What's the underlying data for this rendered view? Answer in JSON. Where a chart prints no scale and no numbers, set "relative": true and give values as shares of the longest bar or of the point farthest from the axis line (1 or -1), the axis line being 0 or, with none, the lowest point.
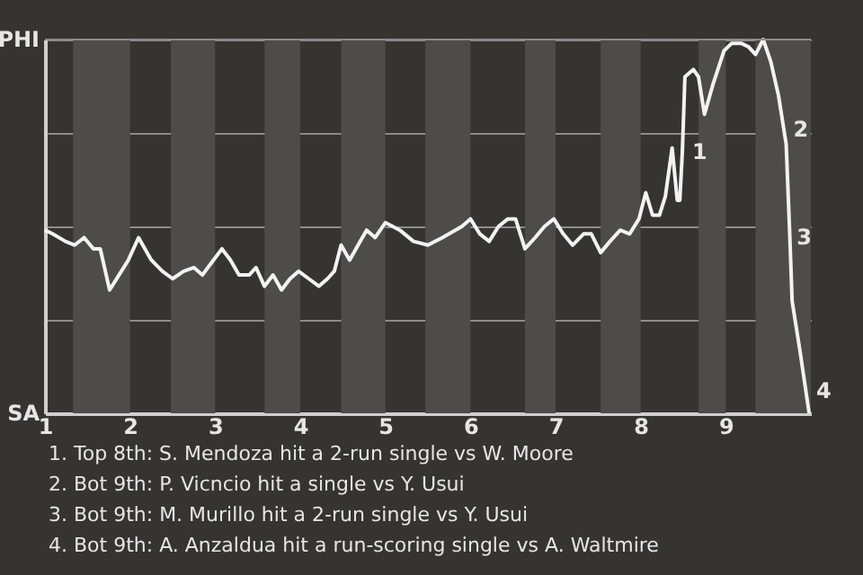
{
  "chart_data": {
    "type": "line",
    "relative": true,
    "x": [
      1.0,
      1.09,
      1.24,
      1.35,
      1.46,
      1.57,
      1.65,
      1.76,
      1.87,
      1.98,
      2.1,
      2.25,
      2.38,
      2.5,
      2.63,
      2.75,
      2.85,
      2.98,
      3.08,
      3.18,
      3.28,
      3.4,
      3.48,
      3.58,
      3.68,
      3.78,
      3.88,
      3.98,
      4.1,
      4.22,
      4.32,
      4.4,
      4.48,
      4.58,
      4.68,
      4.78,
      4.88,
      5.0,
      5.17,
      5.33,
      5.5,
      5.67,
      5.9,
      6.0,
      6.11,
      6.22,
      6.33,
      6.44,
      6.53,
      6.64,
      6.76,
      6.87,
      6.98,
      7.09,
      7.2,
      7.33,
      7.42,
      7.53,
      7.64,
      7.76,
      7.87,
      7.98,
      8.06,
      8.14,
      8.22,
      8.29,
      8.37,
      8.43,
      8.46,
      8.49,
      8.52,
      8.62,
      8.68,
      8.75,
      8.85,
      8.98,
      9.07,
      9.18,
      9.27,
      9.35,
      9.44,
      9.53,
      9.62,
      9.71,
      9.75,
      9.78,
      9.87,
      9.98
    ],
    "series": [
      {
        "color": "#f2f2f2",
        "values": [
          0.49,
          0.48,
          0.46,
          0.45,
          0.47,
          0.44,
          0.44,
          0.33,
          0.37,
          0.41,
          0.47,
          0.41,
          0.38,
          0.36,
          0.38,
          0.39,
          0.37,
          0.41,
          0.44,
          0.41,
          0.37,
          0.37,
          0.39,
          0.34,
          0.37,
          0.33,
          0.36,
          0.38,
          0.36,
          0.34,
          0.36,
          0.38,
          0.45,
          0.41,
          0.45,
          0.49,
          0.47,
          0.51,
          0.49,
          0.46,
          0.45,
          0.47,
          0.5,
          0.52,
          0.48,
          0.46,
          0.5,
          0.52,
          0.52,
          0.44,
          0.47,
          0.5,
          0.52,
          0.48,
          0.45,
          0.48,
          0.48,
          0.43,
          0.46,
          0.49,
          0.48,
          0.52,
          0.59,
          0.53,
          0.53,
          0.58,
          0.71,
          0.57,
          0.57,
          0.7,
          0.9,
          0.92,
          0.9,
          0.8,
          0.88,
          0.97,
          0.99,
          0.99,
          0.98,
          0.96,
          1,
          0.94,
          0.85,
          0.72,
          0.49,
          0.3,
          0.17,
          0
        ]
      }
    ],
    "xlim": [
      1,
      10
    ],
    "xticks": [
      1,
      2,
      3,
      4,
      5,
      6,
      7,
      8,
      9
    ],
    "grid": "y",
    "marker": "none",
    "line_style": "solid",
    "bands": [
      {
        "axis": "x",
        "from": 1.33,
        "to": 2,
        "color": "#4d4c49"
      },
      {
        "axis": "x",
        "from": 2.48,
        "to": 3,
        "color": "#4d4c49"
      },
      {
        "axis": "x",
        "from": 3.58,
        "to": 4,
        "color": "#4d4c49"
      },
      {
        "axis": "x",
        "from": 4.48,
        "to": 5,
        "color": "#4d4c49"
      },
      {
        "axis": "x",
        "from": 5.47,
        "to": 6,
        "color": "#4d4c49"
      },
      {
        "axis": "x",
        "from": 6.64,
        "to": 7,
        "color": "#4d4c49"
      },
      {
        "axis": "x",
        "from": 7.53,
        "to": 8,
        "color": "#4d4c49"
      },
      {
        "axis": "x",
        "from": 8.68,
        "to": 9,
        "color": "#4d4c49"
      },
      {
        "axis": "x",
        "from": 9.35,
        "to": 10,
        "color": "#4d4c49"
      }
    ],
    "annotations": [
      "PHI",
      "SA",
      {
        "text": "1",
        "x": 8.52,
        "y": 0.7
      },
      {
        "text": "2",
        "x": 9.71,
        "y": 0.76
      },
      {
        "text": "3",
        "x": 9.75,
        "y": 0.47
      },
      {
        "text": "4",
        "x": 9.98,
        "y": 0.06
      },
      "1. Top 8th: S. Mendoza hit a 2-run single vs W. Moore",
      "2. Bot 9th: P. Vicncio hit a single vs Y. Usui",
      "3. Bot 9th: M. Murillo hit a 2-run single vs Y. Usui",
      "4. Bot 9th: A. Anzaldua hit a run-scoring single vs A. Waltmire"
    ]
  }
}
